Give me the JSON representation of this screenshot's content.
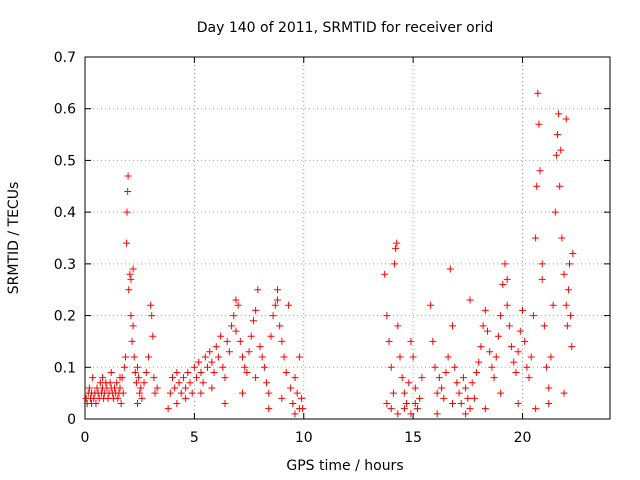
{
  "chart_data": {
    "type": "scatter",
    "title": "Day 140 of 2011, SRMTID for receiver orid",
    "xlabel": "GPS time / hours",
    "ylabel": "SRMTID / TECUs",
    "xlim": [
      0,
      24
    ],
    "ylim": [
      0,
      0.7
    ],
    "xticks": [
      0,
      5,
      10,
      15,
      20
    ],
    "xtick_labels": [
      "0",
      "5",
      "10",
      "15",
      "20"
    ],
    "yticks": [
      0,
      0.1,
      0.2,
      0.3,
      0.4,
      0.5,
      0.6,
      0.7
    ],
    "ytick_labels": [
      "0",
      "0.1",
      "0.2",
      "0.3",
      "0.4",
      "0.5",
      "0.6",
      "0.7"
    ],
    "grid": true,
    "marker": "+",
    "series": [
      {
        "name": "SRMTID",
        "color": "#ff0000",
        "points": [
          [
            0.05,
            0.04
          ],
          [
            0.1,
            0.03
          ],
          [
            0.15,
            0.05
          ],
          [
            0.2,
            0.06
          ],
          [
            0.25,
            0.04
          ],
          [
            0.3,
            0.05
          ],
          [
            0.35,
            0.08
          ],
          [
            0.4,
            0.04
          ],
          [
            0.45,
            0.05
          ],
          [
            0.5,
            0.03
          ],
          [
            0.55,
            0.06
          ],
          [
            0.6,
            0.05
          ],
          [
            0.65,
            0.04
          ],
          [
            0.7,
            0.07
          ],
          [
            0.75,
            0.05
          ],
          [
            0.8,
            0.06
          ],
          [
            0.85,
            0.04
          ],
          [
            0.9,
            0.05
          ],
          [
            0.95,
            0.07
          ],
          [
            1.0,
            0.06
          ],
          [
            1.05,
            0.04
          ],
          [
            1.1,
            0.05
          ],
          [
            1.15,
            0.07
          ],
          [
            1.2,
            0.06
          ],
          [
            1.25,
            0.05
          ],
          [
            1.3,
            0.04
          ],
          [
            1.35,
            0.06
          ],
          [
            1.4,
            0.05
          ],
          [
            1.45,
            0.07
          ],
          [
            1.5,
            0.04
          ],
          [
            1.55,
            0.05
          ],
          [
            1.6,
            0.06
          ],
          [
            1.65,
            0.03
          ],
          [
            1.7,
            0.08
          ],
          [
            1.75,
            0.05
          ],
          [
            1.8,
            0.1
          ],
          [
            1.85,
            0.12
          ],
          [
            1.9,
            0.34
          ],
          [
            1.92,
            0.4
          ],
          [
            1.95,
            0.44
          ],
          [
            1.97,
            0.47
          ],
          [
            2.0,
            0.25
          ],
          [
            2.05,
            0.28
          ],
          [
            2.1,
            0.2
          ],
          [
            2.15,
            0.15
          ],
          [
            2.2,
            0.18
          ],
          [
            2.25,
            0.12
          ],
          [
            2.3,
            0.09
          ],
          [
            2.35,
            0.07
          ],
          [
            2.4,
            0.1
          ],
          [
            2.45,
            0.08
          ],
          [
            2.5,
            0.05
          ],
          [
            2.55,
            0.06
          ],
          [
            2.6,
            0.04
          ],
          [
            2.7,
            0.07
          ],
          [
            2.8,
            0.09
          ],
          [
            2.9,
            0.12
          ],
          [
            3.0,
            0.22
          ],
          [
            3.05,
            0.2
          ],
          [
            3.1,
            0.16
          ],
          [
            3.15,
            0.08
          ],
          [
            3.2,
            0.05
          ],
          [
            3.3,
            0.06
          ],
          [
            0.3,
            0.03
          ],
          [
            0.8,
            0.08
          ],
          [
            1.2,
            0.09
          ],
          [
            1.6,
            0.08
          ],
          [
            2.1,
            0.27
          ],
          [
            2.2,
            0.29
          ],
          [
            2.4,
            0.03
          ],
          [
            3.8,
            0.02
          ],
          [
            3.9,
            0.05
          ],
          [
            4.0,
            0.08
          ],
          [
            4.1,
            0.06
          ],
          [
            4.2,
            0.09
          ],
          [
            4.3,
            0.07
          ],
          [
            4.4,
            0.05
          ],
          [
            4.5,
            0.08
          ],
          [
            4.6,
            0.06
          ],
          [
            4.7,
            0.09
          ],
          [
            4.8,
            0.07
          ],
          [
            4.9,
            0.05
          ],
          [
            5.0,
            0.1
          ],
          [
            5.1,
            0.08
          ],
          [
            5.2,
            0.11
          ],
          [
            5.3,
            0.09
          ],
          [
            5.4,
            0.07
          ],
          [
            5.5,
            0.12
          ],
          [
            5.6,
            0.1
          ],
          [
            5.7,
            0.13
          ],
          [
            5.8,
            0.11
          ],
          [
            5.9,
            0.09
          ],
          [
            6.0,
            0.14
          ],
          [
            6.1,
            0.12
          ],
          [
            6.2,
            0.16
          ],
          [
            6.3,
            0.1
          ],
          [
            6.4,
            0.08
          ],
          [
            6.5,
            0.15
          ],
          [
            6.6,
            0.13
          ],
          [
            6.7,
            0.18
          ],
          [
            6.8,
            0.2
          ],
          [
            6.9,
            0.17
          ],
          [
            7.0,
            0.22
          ],
          [
            7.1,
            0.15
          ],
          [
            7.2,
            0.12
          ],
          [
            7.3,
            0.1
          ],
          [
            7.4,
            0.09
          ],
          [
            7.5,
            0.13
          ],
          [
            7.6,
            0.16
          ],
          [
            7.7,
            0.19
          ],
          [
            7.8,
            0.21
          ],
          [
            7.9,
            0.25
          ],
          [
            8.0,
            0.14
          ],
          [
            8.1,
            0.12
          ],
          [
            8.2,
            0.1
          ],
          [
            8.3,
            0.07
          ],
          [
            8.4,
            0.05
          ],
          [
            8.5,
            0.16
          ],
          [
            8.6,
            0.2
          ],
          [
            8.7,
            0.22
          ],
          [
            8.8,
            0.25
          ],
          [
            8.9,
            0.18
          ],
          [
            9.0,
            0.15
          ],
          [
            9.1,
            0.12
          ],
          [
            9.2,
            0.09
          ],
          [
            9.3,
            0.22
          ],
          [
            9.4,
            0.06
          ],
          [
            9.5,
            0.03
          ],
          [
            9.6,
            0.08
          ],
          [
            9.7,
            0.05
          ],
          [
            9.8,
            0.02
          ],
          [
            9.9,
            0.04
          ],
          [
            4.2,
            0.03
          ],
          [
            4.6,
            0.04
          ],
          [
            5.3,
            0.05
          ],
          [
            5.8,
            0.06
          ],
          [
            6.4,
            0.03
          ],
          [
            7.2,
            0.05
          ],
          [
            7.8,
            0.08
          ],
          [
            8.4,
            0.02
          ],
          [
            9.0,
            0.04
          ],
          [
            9.6,
            0.01
          ],
          [
            9.8,
            0.12
          ],
          [
            9.95,
            0.02
          ],
          [
            6.9,
            0.23
          ],
          [
            8.8,
            0.23
          ],
          [
            13.7,
            0.28
          ],
          [
            13.8,
            0.2
          ],
          [
            13.9,
            0.15
          ],
          [
            14.0,
            0.1
          ],
          [
            14.1,
            0.05
          ],
          [
            14.15,
            0.3
          ],
          [
            14.2,
            0.33
          ],
          [
            14.25,
            0.34
          ],
          [
            14.3,
            0.18
          ],
          [
            14.4,
            0.12
          ],
          [
            14.5,
            0.08
          ],
          [
            14.6,
            0.05
          ],
          [
            14.7,
            0.03
          ],
          [
            14.8,
            0.07
          ],
          [
            14.9,
            0.15
          ],
          [
            15.0,
            0.12
          ],
          [
            15.1,
            0.06
          ],
          [
            15.2,
            0.02
          ],
          [
            15.3,
            0.04
          ],
          [
            15.4,
            0.08
          ],
          [
            13.8,
            0.03
          ],
          [
            14.0,
            0.02
          ],
          [
            14.3,
            0.01
          ],
          [
            14.6,
            0.02
          ],
          [
            14.9,
            0.01
          ],
          [
            15.1,
            0.03
          ],
          [
            15.8,
            0.22
          ],
          [
            15.9,
            0.15
          ],
          [
            16.0,
            0.1
          ],
          [
            16.1,
            0.05
          ],
          [
            16.2,
            0.08
          ],
          [
            16.3,
            0.06
          ],
          [
            16.4,
            0.04
          ],
          [
            16.5,
            0.09
          ],
          [
            16.6,
            0.12
          ],
          [
            16.7,
            0.29
          ],
          [
            16.8,
            0.18
          ],
          [
            16.9,
            0.1
          ],
          [
            17.0,
            0.07
          ],
          [
            17.1,
            0.05
          ],
          [
            17.2,
            0.03
          ],
          [
            17.3,
            0.08
          ],
          [
            17.4,
            0.06
          ],
          [
            17.5,
            0.04
          ],
          [
            17.6,
            0.02
          ],
          [
            17.7,
            0.07
          ],
          [
            17.8,
            0.04
          ],
          [
            17.9,
            0.09
          ],
          [
            18.0,
            0.11
          ],
          [
            18.1,
            0.14
          ],
          [
            18.2,
            0.18
          ],
          [
            18.3,
            0.21
          ],
          [
            18.4,
            0.17
          ],
          [
            18.5,
            0.13
          ],
          [
            18.6,
            0.1
          ],
          [
            18.7,
            0.08
          ],
          [
            18.8,
            0.12
          ],
          [
            18.9,
            0.16
          ],
          [
            19.0,
            0.2
          ],
          [
            19.1,
            0.26
          ],
          [
            19.2,
            0.3
          ],
          [
            19.3,
            0.22
          ],
          [
            19.4,
            0.18
          ],
          [
            19.5,
            0.14
          ],
          [
            19.6,
            0.11
          ],
          [
            19.7,
            0.09
          ],
          [
            19.8,
            0.13
          ],
          [
            19.9,
            0.17
          ],
          [
            20.0,
            0.21
          ],
          [
            20.1,
            0.15
          ],
          [
            20.2,
            0.1
          ],
          [
            20.3,
            0.08
          ],
          [
            20.4,
            0.12
          ],
          [
            20.5,
            0.2
          ],
          [
            20.6,
            0.35
          ],
          [
            20.65,
            0.45
          ],
          [
            20.7,
            0.63
          ],
          [
            20.75,
            0.57
          ],
          [
            20.8,
            0.48
          ],
          [
            20.9,
            0.3
          ],
          [
            21.0,
            0.18
          ],
          [
            21.1,
            0.1
          ],
          [
            21.2,
            0.06
          ],
          [
            21.3,
            0.12
          ],
          [
            21.4,
            0.22
          ],
          [
            21.5,
            0.4
          ],
          [
            21.55,
            0.51
          ],
          [
            21.6,
            0.55
          ],
          [
            21.65,
            0.59
          ],
          [
            21.7,
            0.45
          ],
          [
            21.8,
            0.35
          ],
          [
            21.9,
            0.28
          ],
          [
            22.0,
            0.22
          ],
          [
            22.05,
            0.18
          ],
          [
            22.1,
            0.25
          ],
          [
            22.15,
            0.3
          ],
          [
            22.2,
            0.2
          ],
          [
            22.25,
            0.14
          ],
          [
            22.3,
            0.32
          ],
          [
            16.1,
            0.01
          ],
          [
            16.8,
            0.03
          ],
          [
            17.4,
            0.01
          ],
          [
            18.3,
            0.02
          ],
          [
            19.0,
            0.05
          ],
          [
            19.8,
            0.03
          ],
          [
            20.6,
            0.02
          ],
          [
            21.2,
            0.03
          ],
          [
            21.9,
            0.05
          ],
          [
            22.0,
            0.58
          ],
          [
            21.75,
            0.52
          ],
          [
            20.9,
            0.27
          ],
          [
            19.3,
            0.27
          ],
          [
            17.6,
            0.23
          ]
        ]
      }
    ]
  }
}
